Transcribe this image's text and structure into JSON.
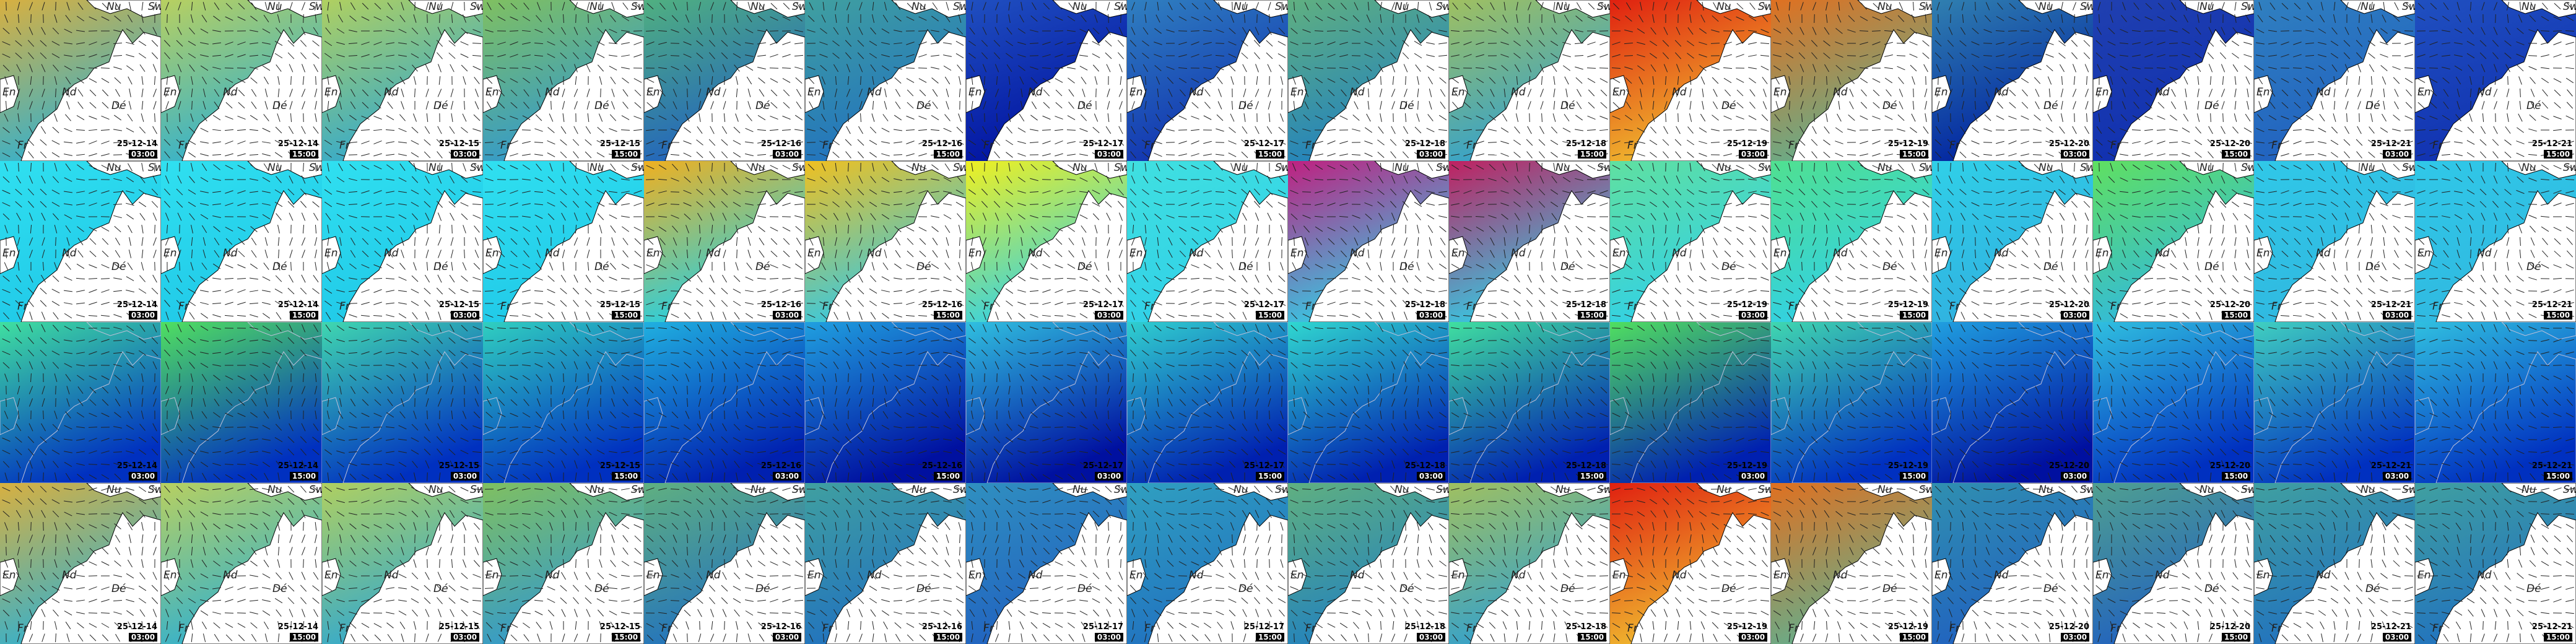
{
  "columns": [
    {
      "date": "25-12-14",
      "time": "03:00"
    },
    {
      "date": "25-12-14",
      "time": "15:00"
    },
    {
      "date": "25-12-15",
      "time": "03:00"
    },
    {
      "date": "25-12-15",
      "time": "15:00"
    },
    {
      "date": "25-12-16",
      "time": "03:00"
    },
    {
      "date": "25-12-16",
      "time": "15:00"
    },
    {
      "date": "25-12-17",
      "time": "03:00"
    },
    {
      "date": "25-12-17",
      "time": "15:00"
    },
    {
      "date": "25-12-18",
      "time": "03:00"
    },
    {
      "date": "25-12-18",
      "time": "15:00"
    },
    {
      "date": "25-12-19",
      "time": "03:00"
    },
    {
      "date": "25-12-19",
      "time": "15:00"
    },
    {
      "date": "25-12-20",
      "time": "03:00"
    },
    {
      "date": "25-12-20",
      "time": "15:00"
    },
    {
      "date": "25-12-21",
      "time": "03:00"
    },
    {
      "date": "25-12-21",
      "time": "15:00"
    }
  ],
  "place_labels": {
    "north": "Nu",
    "sweden": "Sw",
    "england": "En",
    "netherlands": "Nd",
    "germany": "Dé",
    "france": "Fr"
  },
  "rows": [
    {
      "labels": true,
      "land": "#ffffff",
      "colors": [
        [
          "#d8b040",
          "#30b0d0"
        ],
        [
          "#b8d060",
          "#30b0d0"
        ],
        [
          "#b0d060",
          "#30a8d0"
        ],
        [
          "#80c060",
          "#3098d0"
        ],
        [
          "#50b080",
          "#2060c0"
        ],
        [
          "#40a0a0",
          "#2070c0"
        ],
        [
          "#2050c0",
          "#0010a0"
        ],
        [
          "#3080c0",
          "#1030b0"
        ],
        [
          "#60b080",
          "#2080c0"
        ],
        [
          "#a0c060",
          "#30a0d0"
        ],
        [
          "#e02010",
          "#f0c030"
        ],
        [
          "#e07020",
          "#60b090"
        ],
        [
          "#3080b0",
          "#0020a0"
        ],
        [
          "#2040b0",
          "#1030b0"
        ],
        [
          "#3080c0",
          "#2060c0"
        ],
        [
          "#2050c0",
          "#1030b0"
        ]
      ]
    },
    {
      "labels": true,
      "land": "#ffffff",
      "colors": [
        [
          "#30e0f0",
          "#20c8e8"
        ],
        [
          "#30e0f0",
          "#20c8e8"
        ],
        [
          "#30e0f0",
          "#20c8e8"
        ],
        [
          "#30e0f0",
          "#20c8e8"
        ],
        [
          "#f0b020",
          "#20d0e8"
        ],
        [
          "#f0c020",
          "#30c8e8"
        ],
        [
          "#f0f020",
          "#30d0e8"
        ],
        [
          "#40e0e0",
          "#30d0e8"
        ],
        [
          "#c02080",
          "#30d0e8"
        ],
        [
          "#c02060",
          "#30d0e8"
        ],
        [
          "#60e0a0",
          "#30d0e8"
        ],
        [
          "#50e090",
          "#30d0e8"
        ],
        [
          "#30d0e8",
          "#30b0e0"
        ],
        [
          "#60e060",
          "#30b8e0"
        ],
        [
          "#30c8e8",
          "#30b8e0"
        ],
        [
          "#30c8e8",
          "#30b8e0"
        ]
      ]
    },
    {
      "labels": false,
      "land": "none",
      "colors": [
        [
          "#40e0a0",
          "#0030c0"
        ],
        [
          "#50e060",
          "#0030c0"
        ],
        [
          "#40d8b0",
          "#0030c0"
        ],
        [
          "#30d0c0",
          "#0030c0"
        ],
        [
          "#20b0e0",
          "#0020b0"
        ],
        [
          "#20a0e0",
          "#0010a0"
        ],
        [
          "#30c0e0",
          "#0010a0"
        ],
        [
          "#30d0d0",
          "#0020b0"
        ],
        [
          "#30d8d0",
          "#0020b0"
        ],
        [
          "#40e0a0",
          "#0020b0"
        ],
        [
          "#50e060",
          "#0020b0"
        ],
        [
          "#40d8b0",
          "#0030c0"
        ],
        [
          "#20a0e0",
          "#0010a0"
        ],
        [
          "#30c0e0",
          "#0030c0"
        ],
        [
          "#40d0c0",
          "#0030c0"
        ],
        [
          "#30c0e0",
          "#0030c0"
        ]
      ]
    },
    {
      "labels": true,
      "land": "#ffffff",
      "colors": [
        [
          "#d8b040",
          "#30b0d0"
        ],
        [
          "#b8d060",
          "#30b0d0"
        ],
        [
          "#b0d060",
          "#30a8d0"
        ],
        [
          "#80c060",
          "#3098d0"
        ],
        [
          "#60b080",
          "#2070c0"
        ],
        [
          "#40a0a0",
          "#2070c0"
        ],
        [
          "#3090c0",
          "#2060c0"
        ],
        [
          "#30a0c0",
          "#2070c0"
        ],
        [
          "#60b080",
          "#2080c0"
        ],
        [
          "#a0c060",
          "#30a0d0"
        ],
        [
          "#e02010",
          "#f0c030"
        ],
        [
          "#e07020",
          "#60b090"
        ],
        [
          "#3090b0",
          "#2060c0"
        ],
        [
          "#50a090",
          "#2060c0"
        ],
        [
          "#40a0a0",
          "#2070c0"
        ],
        [
          "#40a0a0",
          "#2070c0"
        ]
      ]
    }
  ]
}
